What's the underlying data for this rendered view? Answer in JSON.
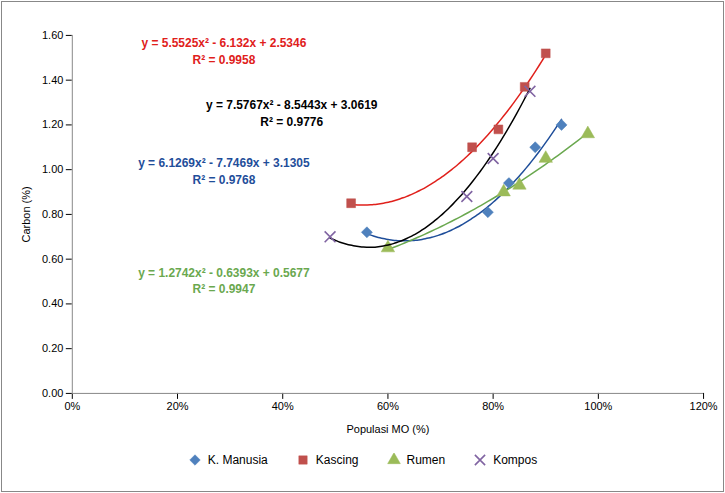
{
  "chart_data": {
    "type": "scatter",
    "xlabel": "Populasi MO (%)",
    "ylabel": "Carbon (%)",
    "xlim": [
      0,
      1.2
    ],
    "xticks": [
      {
        "value": 0,
        "label": "0%"
      },
      {
        "value": 0.2,
        "label": "20%"
      },
      {
        "value": 0.4,
        "label": "40%"
      },
      {
        "value": 0.6,
        "label": "60%"
      },
      {
        "value": 0.8,
        "label": "80%"
      },
      {
        "value": 1.0,
        "label": "100%"
      },
      {
        "value": 1.2,
        "label": "120%"
      }
    ],
    "ylim": [
      0,
      1.6
    ],
    "yticks": [
      {
        "value": 0,
        "label": "0.00"
      },
      {
        "value": 0.2,
        "label": "0.20"
      },
      {
        "value": 0.4,
        "label": "0.40"
      },
      {
        "value": 0.6,
        "label": "0.60"
      },
      {
        "value": 0.8,
        "label": "0.80"
      },
      {
        "value": 1.0,
        "label": "1.00"
      },
      {
        "value": 1.2,
        "label": "1.20"
      },
      {
        "value": 1.4,
        "label": "1.40"
      },
      {
        "value": 1.6,
        "label": "1.60"
      }
    ],
    "grid": false,
    "legend": "bottom",
    "series": [
      {
        "name": "K. Manusia",
        "color": "#4F81BD",
        "marker": "diamond",
        "x": [
          0.56,
          0.79,
          0.83,
          0.88,
          0.93
        ],
        "values": [
          0.72,
          0.81,
          0.94,
          1.1,
          1.2
        ],
        "trendline": {
          "color": "#1F4E9A",
          "equation": "y = 6.1269x² - 7.7469x + 3.1305",
          "coefficients": [
            6.1269,
            -7.7469,
            3.1305
          ],
          "r2_text": "R² =",
          "r2": 0.9768
        }
      },
      {
        "name": "Kascing",
        "color": "#C0504D",
        "marker": "square",
        "x": [
          0.53,
          0.76,
          0.81,
          0.86,
          0.9
        ],
        "values": [
          0.85,
          1.1,
          1.18,
          1.37,
          1.52
        ],
        "trendline": {
          "color": "#E0201B",
          "equation": "y = 5.5525x² - 6.132x + 2.5346",
          "coefficients": [
            5.5525,
            -6.132,
            2.5346
          ],
          "r2_text": "R² =",
          "r2": 0.9958
        }
      },
      {
        "name": "Rumen",
        "color": "#9BBB59",
        "marker": "triangle",
        "x": [
          0.6,
          0.82,
          0.85,
          0.9,
          0.98
        ],
        "values": [
          0.65,
          0.9,
          0.93,
          1.05,
          1.16
        ],
        "trendline": {
          "color": "#6AA84F",
          "equation": "y = 1.2742x² - 0.6393x + 0.5677",
          "coefficients": [
            1.2742,
            -0.6393,
            0.5677
          ],
          "r2_text": "R² =",
          "r2": 0.9947
        }
      },
      {
        "name": "Kompos",
        "color": "#8064A2",
        "marker": "times",
        "x": [
          0.49,
          0.75,
          0.8,
          0.87
        ],
        "values": [
          0.7,
          0.88,
          1.05,
          1.35
        ],
        "trendline": {
          "color": "#000000",
          "equation": "y = 7.5767x² - 8.5443x + 3.0619",
          "coefficients": [
            7.5767,
            -8.5443,
            3.0619
          ],
          "r2_text": "R² =",
          "r2": 0.9776
        }
      }
    ]
  }
}
